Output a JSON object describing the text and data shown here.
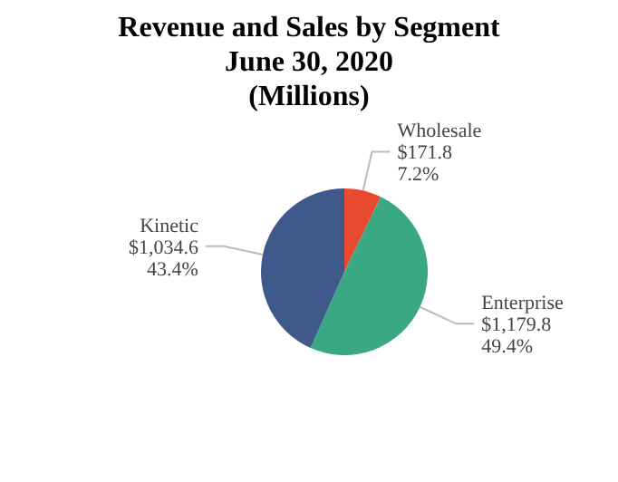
{
  "chart_data": {
    "type": "pie",
    "title": "Revenue and Sales by Segment\nJune 30, 2020\n(Millions)",
    "categories": [
      "Wholesale",
      "Enterprise",
      "Kinetic"
    ],
    "values": [
      171.8,
      1179.8,
      1034.6
    ],
    "colors": [
      "#e8492f",
      "#3aa882",
      "#3f5a8a"
    ],
    "value_labels": [
      "$171.8\n7.2%",
      "$1,179.8\n49.4%",
      "$1,034.6\n43.4%"
    ]
  }
}
